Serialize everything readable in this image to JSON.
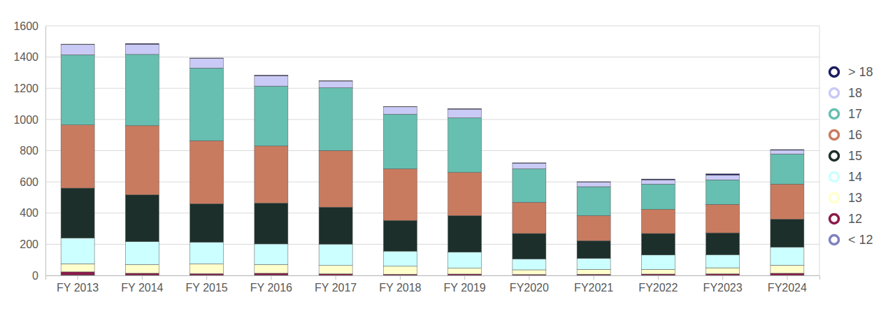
{
  "chart_data": {
    "type": "bar",
    "stacked": true,
    "grid": true,
    "legend": "right",
    "categories": [
      "FY 2013",
      "FY 2014",
      "FY 2015",
      "FY 2016",
      "FY 2017",
      "FY 2018",
      "FY 2019",
      "FY2020",
      "FY2021",
      "FY2022",
      "FY2023",
      "FY2024"
    ],
    "ylim": [
      0,
      1600
    ],
    "yticks": [
      0,
      200,
      400,
      600,
      800,
      1000,
      1200,
      1400,
      1600
    ],
    "series": [
      {
        "name": "< 12",
        "color": "#8080c0",
        "values": [
          3,
          2,
          2,
          2,
          1,
          1,
          1,
          1,
          1,
          1,
          1,
          1
        ]
      },
      {
        "name": "12",
        "color": "#8b1a4a",
        "values": [
          20,
          12,
          10,
          12,
          9,
          7,
          8,
          5,
          7,
          8,
          9,
          13
        ]
      },
      {
        "name": "13",
        "color": "#ffffcc",
        "values": [
          52,
          56,
          62,
          56,
          54,
          51,
          37,
          30,
          31,
          30,
          39,
          52
        ]
      },
      {
        "name": "14",
        "color": "#ccffff",
        "values": [
          165,
          147,
          140,
          132,
          137,
          97,
          103,
          70,
          70,
          92,
          84,
          115
        ]
      },
      {
        "name": "15",
        "color": "#1c2f2b",
        "values": [
          320,
          300,
          246,
          262,
          237,
          197,
          235,
          163,
          114,
          138,
          140,
          180
        ]
      },
      {
        "name": "16",
        "color": "#c97b5f",
        "values": [
          405,
          443,
          404,
          366,
          363,
          331,
          277,
          200,
          161,
          155,
          183,
          225
        ]
      },
      {
        "name": "17",
        "color": "#66bfb0",
        "values": [
          450,
          457,
          466,
          384,
          403,
          350,
          350,
          215,
          185,
          162,
          157,
          193
        ]
      },
      {
        "name": "18",
        "color": "#cacaf7",
        "values": [
          65,
          65,
          62,
          66,
          42,
          47,
          55,
          35,
          30,
          27,
          31,
          24
        ]
      },
      {
        "name": "> 18",
        "color": "#1a1a5e",
        "values": [
          3,
          5,
          2,
          4,
          2,
          2,
          3,
          3,
          2,
          5,
          7,
          4
        ]
      }
    ]
  }
}
